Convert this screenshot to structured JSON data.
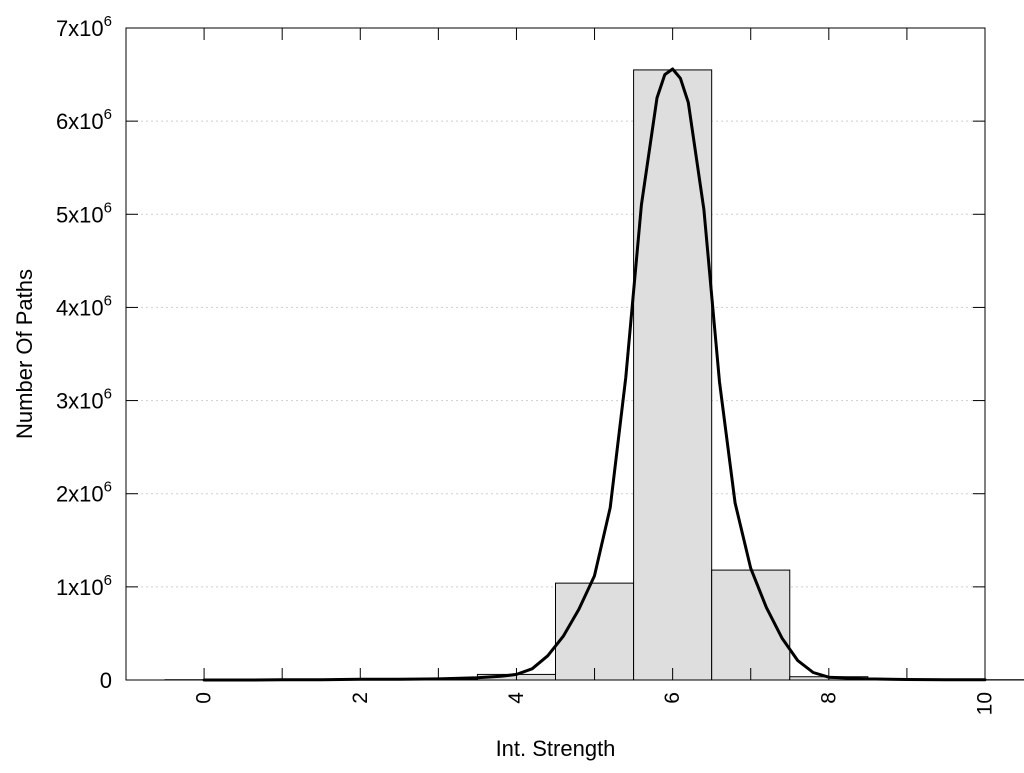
{
  "chart_data": {
    "type": "bar",
    "title": "",
    "xlabel": "Int. Strength",
    "ylabel": "Number Of Paths",
    "xlim": [
      -1,
      10
    ],
    "ylim": [
      0,
      7000000
    ],
    "grid": true,
    "x_ticks": [
      {
        "value": 0,
        "label": "0"
      },
      {
        "value": 2,
        "label": "2"
      },
      {
        "value": 4,
        "label": "4"
      },
      {
        "value": 6,
        "label": "6"
      },
      {
        "value": 8,
        "label": "8"
      },
      {
        "value": 10,
        "label": "10"
      }
    ],
    "y_ticks": [
      {
        "value": 0,
        "mantissa": "0",
        "exponent": ""
      },
      {
        "value": 1000000,
        "mantissa": "1x10",
        "exponent": "6"
      },
      {
        "value": 2000000,
        "mantissa": "2x10",
        "exponent": "6"
      },
      {
        "value": 3000000,
        "mantissa": "3x10",
        "exponent": "6"
      },
      {
        "value": 4000000,
        "mantissa": "4x10",
        "exponent": "6"
      },
      {
        "value": 5000000,
        "mantissa": "5x10",
        "exponent": "6"
      },
      {
        "value": 6000000,
        "mantissa": "6x10",
        "exponent": "6"
      },
      {
        "value": 7000000,
        "mantissa": "7x10",
        "exponent": "6"
      }
    ],
    "bins": [
      {
        "x": 0,
        "value": 3000
      },
      {
        "x": 1,
        "value": 3000
      },
      {
        "x": 2,
        "value": 6000
      },
      {
        "x": 3,
        "value": 10000
      },
      {
        "x": 4,
        "value": 60000
      },
      {
        "x": 5,
        "value": 1040000
      },
      {
        "x": 6,
        "value": 6550000
      },
      {
        "x": 7,
        "value": 1180000
      },
      {
        "x": 8,
        "value": 35000
      },
      {
        "x": 9,
        "value": 8000
      },
      {
        "x": 10,
        "value": 3000
      }
    ],
    "bin_width": 1,
    "curve": {
      "x": [
        0,
        0.5,
        1,
        1.5,
        2,
        2.5,
        3,
        3.5,
        3.8,
        4,
        4.2,
        4.4,
        4.6,
        4.8,
        5,
        5.2,
        5.4,
        5.6,
        5.8,
        5.9,
        6,
        6.1,
        6.2,
        6.4,
        6.6,
        6.8,
        7,
        7.2,
        7.4,
        7.6,
        7.8,
        8,
        8.5,
        9,
        9.5,
        10
      ],
      "y": [
        0,
        0,
        2000,
        3000,
        8000,
        8000,
        12000,
        25000,
        40000,
        60000,
        120000,
        260000,
        470000,
        760000,
        1120000,
        1850000,
        3250000,
        5100000,
        6250000,
        6500000,
        6560000,
        6460000,
        6200000,
        5050000,
        3200000,
        1900000,
        1200000,
        780000,
        450000,
        210000,
        80000,
        30000,
        12000,
        5000,
        3000,
        2000
      ]
    },
    "colors": {
      "bar_fill": "#dedede",
      "bar_stroke": "#000000",
      "curve": "#000000",
      "grid": "#cfcfcf",
      "axis": "#000000"
    }
  }
}
